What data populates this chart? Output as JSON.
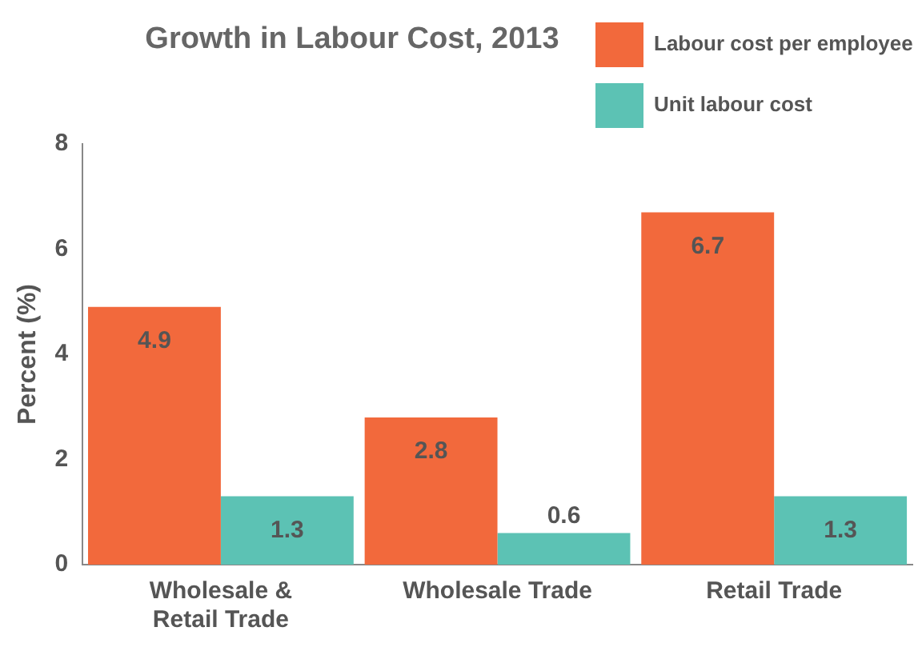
{
  "chart_data": {
    "type": "bar",
    "title": "Growth in Labour Cost, 2013",
    "ylabel": "Percent (%)",
    "categories": [
      "Wholesale & Retail Trade",
      "Wholesale Trade",
      "Retail Trade"
    ],
    "series": [
      {
        "name": "Labour cost per employee",
        "color": "#f2693c",
        "values": [
          4.9,
          2.8,
          6.7
        ]
      },
      {
        "name": "Unit labour cost",
        "color": "#5cc2b4",
        "values": [
          1.3,
          0.6,
          1.3
        ]
      }
    ],
    "ylim": [
      0,
      8
    ],
    "yticks": [
      0,
      2,
      4,
      6,
      8
    ],
    "grid": false,
    "legend": "top right",
    "data_labels": true
  }
}
